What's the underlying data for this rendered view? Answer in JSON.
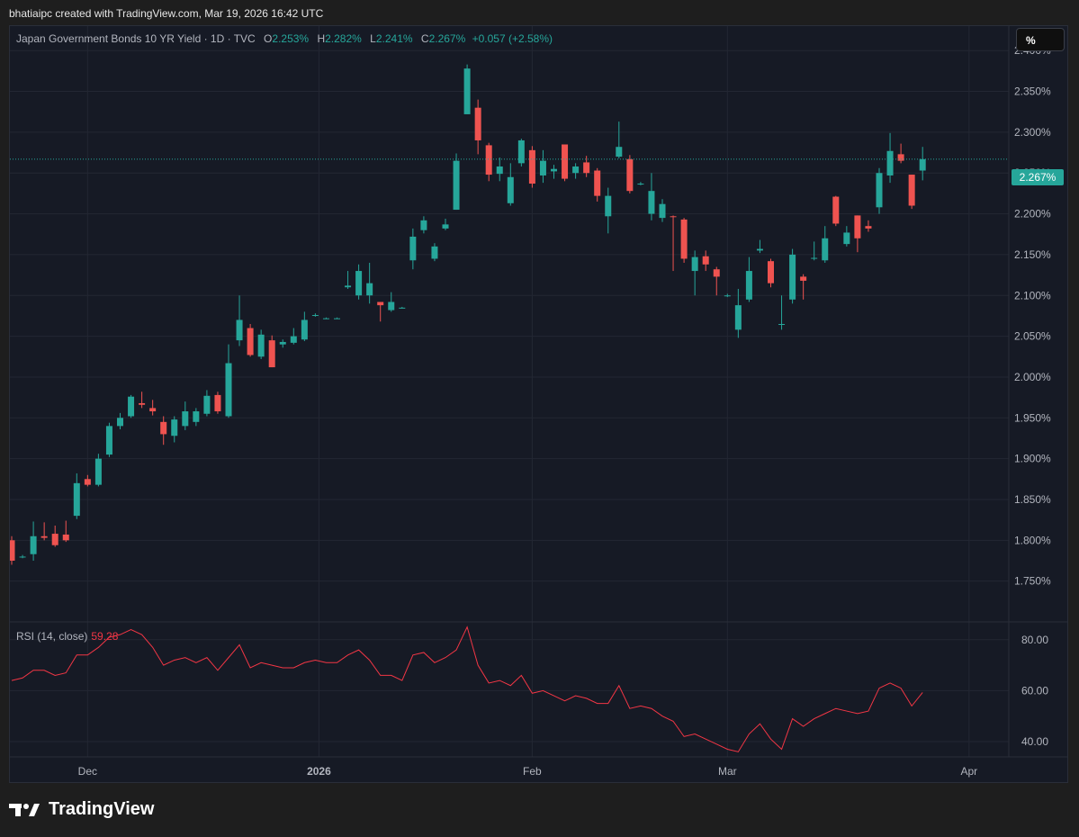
{
  "header": {
    "created_by": "bhatiaipc created with TradingView.com, Mar 19, 2026 16:42 UTC"
  },
  "legend": {
    "symbol": "Japan Government Bonds 10 YR Yield · 1D · TVC",
    "open_label": "O",
    "open": "2.253%",
    "high_label": "H",
    "high": "2.282%",
    "low_label": "L",
    "low": "2.241%",
    "close_label": "C",
    "close": "2.267%",
    "change": "+0.057 (+2.58%)"
  },
  "unit_button": "%",
  "last_price_tag": "2.267%",
  "rsi_legend": {
    "label": "RSI (14, close)",
    "value": "59.28"
  },
  "brand": {
    "name": "TradingView"
  },
  "colors": {
    "up": "#26a69a",
    "down": "#ef5350",
    "rsi_line": "#f23645",
    "background": "#161a25",
    "grid": "#232733"
  },
  "chart_data": [
    {
      "type": "candlestick",
      "title": "Japan Government Bonds 10 YR Yield · 1D · TVC",
      "ylim": [
        1.7,
        2.43
      ],
      "y_ticks": [
        "2.400%",
        "2.350%",
        "2.300%",
        "2.250%",
        "2.200%",
        "2.150%",
        "2.100%",
        "2.050%",
        "2.000%",
        "1.950%",
        "1.900%",
        "1.850%",
        "1.800%",
        "1.750%"
      ],
      "x_ticks": [
        {
          "label": "Dec",
          "date": "2025-12-01"
        },
        {
          "label": "2026",
          "date": "2026-01-01"
        },
        {
          "label": "Feb",
          "date": "2026-02-02"
        },
        {
          "label": "Mar",
          "date": "2026-03-02"
        },
        {
          "label": "Apr",
          "date": "2026-04-01"
        }
      ],
      "bars": [
        {
          "date": "2025-11-20",
          "o": 1.8,
          "h": 1.805,
          "l": 1.77,
          "c": 1.775
        },
        {
          "date": "2025-11-21",
          "o": 1.78,
          "h": 1.782,
          "l": 1.778,
          "c": 1.78
        },
        {
          "date": "2025-11-24",
          "o": 1.783,
          "h": 1.823,
          "l": 1.775,
          "c": 1.805
        },
        {
          "date": "2025-11-25",
          "o": 1.805,
          "h": 1.822,
          "l": 1.8,
          "c": 1.803
        },
        {
          "date": "2025-11-26",
          "o": 1.808,
          "h": 1.818,
          "l": 1.792,
          "c": 1.794
        },
        {
          "date": "2025-11-27",
          "o": 1.807,
          "h": 1.824,
          "l": 1.798,
          "c": 1.8
        },
        {
          "date": "2025-11-28",
          "o": 1.83,
          "h": 1.882,
          "l": 1.826,
          "c": 1.87
        },
        {
          "date": "2025-12-01",
          "o": 1.875,
          "h": 1.88,
          "l": 1.866,
          "c": 1.868
        },
        {
          "date": "2025-12-02",
          "o": 1.868,
          "h": 1.906,
          "l": 1.866,
          "c": 1.9
        },
        {
          "date": "2025-12-03",
          "o": 1.905,
          "h": 1.944,
          "l": 1.902,
          "c": 1.94
        },
        {
          "date": "2025-12-04",
          "o": 1.94,
          "h": 1.956,
          "l": 1.936,
          "c": 1.95
        },
        {
          "date": "2025-12-05",
          "o": 1.952,
          "h": 1.978,
          "l": 1.95,
          "c": 1.976
        },
        {
          "date": "2025-12-08",
          "o": 1.968,
          "h": 1.982,
          "l": 1.962,
          "c": 1.966
        },
        {
          "date": "2025-12-09",
          "o": 1.962,
          "h": 1.972,
          "l": 1.953,
          "c": 1.958
        },
        {
          "date": "2025-12-10",
          "o": 1.945,
          "h": 1.952,
          "l": 1.917,
          "c": 1.93
        },
        {
          "date": "2025-12-11",
          "o": 1.928,
          "h": 1.952,
          "l": 1.92,
          "c": 1.948
        },
        {
          "date": "2025-12-12",
          "o": 1.94,
          "h": 1.97,
          "l": 1.935,
          "c": 1.958
        },
        {
          "date": "2025-12-15",
          "o": 1.945,
          "h": 1.962,
          "l": 1.94,
          "c": 1.958
        },
        {
          "date": "2025-12-16",
          "o": 1.955,
          "h": 1.984,
          "l": 1.952,
          "c": 1.977
        },
        {
          "date": "2025-12-17",
          "o": 1.978,
          "h": 1.982,
          "l": 1.955,
          "c": 1.958
        },
        {
          "date": "2025-12-18",
          "o": 1.952,
          "h": 2.04,
          "l": 1.95,
          "c": 2.017
        },
        {
          "date": "2025-12-19",
          "o": 2.045,
          "h": 2.1,
          "l": 2.038,
          "c": 2.07
        },
        {
          "date": "2025-12-22",
          "o": 2.06,
          "h": 2.065,
          "l": 2.025,
          "c": 2.027
        },
        {
          "date": "2025-12-23",
          "o": 2.025,
          "h": 2.058,
          "l": 2.022,
          "c": 2.052
        },
        {
          "date": "2025-12-24",
          "o": 2.045,
          "h": 2.051,
          "l": 2.012,
          "c": 2.012
        },
        {
          "date": "2025-12-25",
          "o": 2.04,
          "h": 2.046,
          "l": 2.036,
          "c": 2.043
        },
        {
          "date": "2025-12-26",
          "o": 2.042,
          "h": 2.06,
          "l": 2.04,
          "c": 2.05
        },
        {
          "date": "2025-12-29",
          "o": 2.046,
          "h": 2.08,
          "l": 2.044,
          "c": 2.07
        },
        {
          "date": "2025-12-30",
          "o": 2.076,
          "h": 2.078,
          "l": 2.074,
          "c": 2.076
        },
        {
          "date": "2026-01-05",
          "o": 2.072,
          "h": 2.073,
          "l": 2.071,
          "c": 2.072
        },
        {
          "date": "2026-01-06",
          "o": 2.072,
          "h": 2.073,
          "l": 2.071,
          "c": 2.072
        },
        {
          "date": "2026-01-07",
          "o": 2.11,
          "h": 2.13,
          "l": 2.108,
          "c": 2.112
        },
        {
          "date": "2026-01-08",
          "o": 2.1,
          "h": 2.138,
          "l": 2.095,
          "c": 2.13
        },
        {
          "date": "2026-01-09",
          "o": 2.1,
          "h": 2.14,
          "l": 2.09,
          "c": 2.115
        },
        {
          "date": "2026-01-13",
          "o": 2.092,
          "h": 2.092,
          "l": 2.068,
          "c": 2.088
        },
        {
          "date": "2026-01-14",
          "o": 2.082,
          "h": 2.104,
          "l": 2.08,
          "c": 2.092
        },
        {
          "date": "2026-01-15",
          "o": 2.085,
          "h": 2.086,
          "l": 2.084,
          "c": 2.085
        },
        {
          "date": "2026-01-16",
          "o": 2.143,
          "h": 2.182,
          "l": 2.132,
          "c": 2.172
        },
        {
          "date": "2026-01-19",
          "o": 2.18,
          "h": 2.197,
          "l": 2.176,
          "c": 2.192
        },
        {
          "date": "2026-01-20",
          "o": 2.145,
          "h": 2.164,
          "l": 2.142,
          "c": 2.16
        },
        {
          "date": "2026-01-21",
          "o": 2.182,
          "h": 2.194,
          "l": 2.18,
          "c": 2.187
        },
        {
          "date": "2026-01-22",
          "o": 2.205,
          "h": 2.274,
          "l": 2.205,
          "c": 2.265
        },
        {
          "date": "2026-01-23",
          "o": 2.322,
          "h": 2.383,
          "l": 2.322,
          "c": 2.378
        },
        {
          "date": "2026-01-26",
          "o": 2.33,
          "h": 2.34,
          "l": 2.273,
          "c": 2.29
        },
        {
          "date": "2026-01-27",
          "o": 2.284,
          "h": 2.287,
          "l": 2.24,
          "c": 2.248
        },
        {
          "date": "2026-01-28",
          "o": 2.249,
          "h": 2.269,
          "l": 2.24,
          "c": 2.258
        },
        {
          "date": "2026-01-29",
          "o": 2.213,
          "h": 2.262,
          "l": 2.21,
          "c": 2.245
        },
        {
          "date": "2026-01-30",
          "o": 2.262,
          "h": 2.292,
          "l": 2.258,
          "c": 2.29
        },
        {
          "date": "2026-02-02",
          "o": 2.278,
          "h": 2.283,
          "l": 2.232,
          "c": 2.237
        },
        {
          "date": "2026-02-03",
          "o": 2.247,
          "h": 2.278,
          "l": 2.238,
          "c": 2.265
        },
        {
          "date": "2026-02-04",
          "o": 2.252,
          "h": 2.26,
          "l": 2.243,
          "c": 2.255
        },
        {
          "date": "2026-02-05",
          "o": 2.285,
          "h": 2.285,
          "l": 2.24,
          "c": 2.243
        },
        {
          "date": "2026-02-06",
          "o": 2.25,
          "h": 2.262,
          "l": 2.243,
          "c": 2.258
        },
        {
          "date": "2026-02-09",
          "o": 2.263,
          "h": 2.271,
          "l": 2.245,
          "c": 2.25
        },
        {
          "date": "2026-02-10",
          "o": 2.253,
          "h": 2.256,
          "l": 2.215,
          "c": 2.222
        },
        {
          "date": "2026-02-12",
          "o": 2.197,
          "h": 2.232,
          "l": 2.176,
          "c": 2.222
        },
        {
          "date": "2026-02-13",
          "o": 2.27,
          "h": 2.313,
          "l": 2.268,
          "c": 2.282
        },
        {
          "date": "2026-02-16",
          "o": 2.267,
          "h": 2.272,
          "l": 2.225,
          "c": 2.228
        },
        {
          "date": "2026-02-17",
          "o": 2.237,
          "h": 2.239,
          "l": 2.235,
          "c": 2.237
        },
        {
          "date": "2026-02-18",
          "o": 2.2,
          "h": 2.25,
          "l": 2.192,
          "c": 2.228
        },
        {
          "date": "2026-02-19",
          "o": 2.195,
          "h": 2.218,
          "l": 2.19,
          "c": 2.212
        },
        {
          "date": "2026-02-20",
          "o": 2.197,
          "h": 2.198,
          "l": 2.13,
          "c": 2.196
        },
        {
          "date": "2026-02-24",
          "o": 2.193,
          "h": 2.195,
          "l": 2.14,
          "c": 2.145
        },
        {
          "date": "2026-02-25",
          "o": 2.13,
          "h": 2.155,
          "l": 2.1,
          "c": 2.147
        },
        {
          "date": "2026-02-26",
          "o": 2.148,
          "h": 2.155,
          "l": 2.13,
          "c": 2.138
        },
        {
          "date": "2026-02-27",
          "o": 2.132,
          "h": 2.135,
          "l": 2.1,
          "c": 2.123
        },
        {
          "date": "2026-03-02",
          "o": 2.1,
          "h": 2.102,
          "l": 2.098,
          "c": 2.1
        },
        {
          "date": "2026-03-03",
          "o": 2.058,
          "h": 2.108,
          "l": 2.048,
          "c": 2.088
        },
        {
          "date": "2026-03-04",
          "o": 2.095,
          "h": 2.147,
          "l": 2.092,
          "c": 2.13
        },
        {
          "date": "2026-03-05",
          "o": 2.155,
          "h": 2.168,
          "l": 2.152,
          "c": 2.157
        },
        {
          "date": "2026-03-06",
          "o": 2.142,
          "h": 2.145,
          "l": 2.11,
          "c": 2.115
        },
        {
          "date": "2026-03-09",
          "o": 2.065,
          "h": 2.1,
          "l": 2.058,
          "c": 2.065
        },
        {
          "date": "2026-03-10",
          "o": 2.095,
          "h": 2.157,
          "l": 2.09,
          "c": 2.15
        },
        {
          "date": "2026-03-11",
          "o": 2.123,
          "h": 2.126,
          "l": 2.095,
          "c": 2.118
        },
        {
          "date": "2026-03-12",
          "o": 2.145,
          "h": 2.166,
          "l": 2.143,
          "c": 2.146
        },
        {
          "date": "2026-03-13",
          "o": 2.143,
          "h": 2.185,
          "l": 2.14,
          "c": 2.17
        },
        {
          "date": "2026-03-16",
          "o": 2.221,
          "h": 2.222,
          "l": 2.185,
          "c": 2.188
        },
        {
          "date": "2026-03-17",
          "o": 2.163,
          "h": 2.185,
          "l": 2.16,
          "c": 2.177
        },
        {
          "date": "2026-03-18",
          "o": 2.198,
          "h": 2.198,
          "l": 2.153,
          "c": 2.17
        },
        {
          "date": "2026-03-19",
          "o": 2.185,
          "h": 2.192,
          "l": 2.178,
          "c": 2.182
        },
        {
          "date": "2026-03-20",
          "o": 2.208,
          "h": 2.256,
          "l": 2.2,
          "c": 2.25
        },
        {
          "date": "2026-03-23",
          "o": 2.247,
          "h": 2.299,
          "l": 2.238,
          "c": 2.277
        },
        {
          "date": "2026-03-24",
          "o": 2.273,
          "h": 2.286,
          "l": 2.262,
          "c": 2.265
        },
        {
          "date": "2026-03-25",
          "o": 2.248,
          "h": 2.248,
          "l": 2.206,
          "c": 2.21
        },
        {
          "date": "2026-03-26",
          "o": 2.253,
          "h": 2.282,
          "l": 2.241,
          "c": 2.267
        }
      ]
    },
    {
      "type": "line",
      "title": "RSI (14, close)",
      "ylim": [
        34,
        87
      ],
      "y_ticks": [
        "80.00",
        "60.00",
        "40.00"
      ],
      "values": [
        64,
        65,
        68,
        68,
        66,
        67,
        74,
        74,
        77,
        81,
        82,
        84,
        82,
        77,
        70,
        72,
        73,
        71,
        73,
        68,
        73,
        78,
        69,
        71,
        70,
        69,
        69,
        71,
        72,
        71,
        71,
        74,
        76,
        72,
        66,
        66,
        64,
        74,
        75,
        71,
        73,
        76,
        85,
        70,
        63,
        64,
        62,
        66,
        59,
        60,
        58,
        56,
        58,
        57,
        55,
        55,
        62,
        53,
        54,
        53,
        50,
        48,
        42,
        43,
        41,
        39,
        37,
        36,
        43,
        47,
        41,
        37,
        49,
        46,
        49,
        51,
        53,
        52,
        51,
        52,
        61,
        63,
        61,
        54,
        59.28
      ]
    }
  ]
}
